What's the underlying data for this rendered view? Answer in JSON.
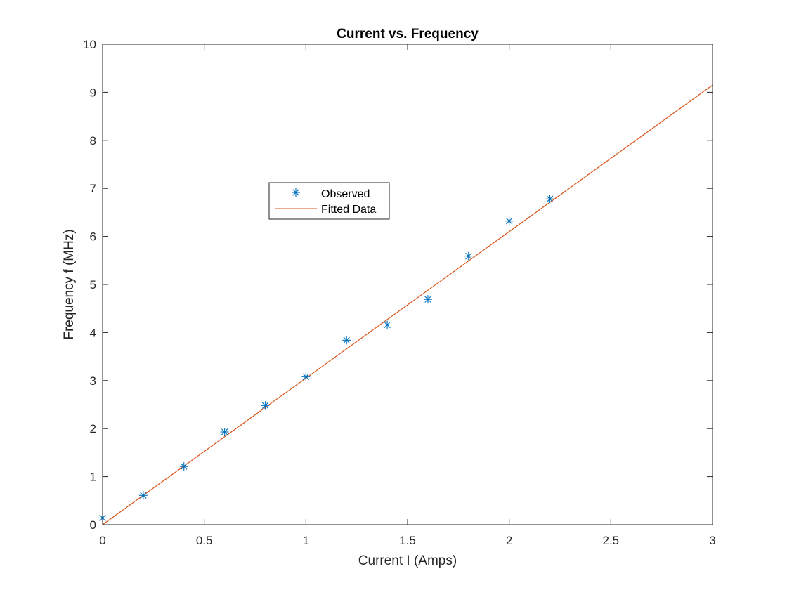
{
  "chart_data": {
    "type": "scatter",
    "title": "Current vs. Frequency",
    "xlabel": "Current I (Amps)",
    "ylabel": "Frequency f (MHz)",
    "xlim": [
      0,
      3
    ],
    "ylim": [
      0,
      10
    ],
    "xticks": [
      "0",
      "0.5",
      "1",
      "1.5",
      "2",
      "2.5",
      "3"
    ],
    "xtick_values": [
      0,
      0.5,
      1,
      1.5,
      2,
      2.5,
      3
    ],
    "yticks": [
      "0",
      "1",
      "2",
      "3",
      "4",
      "5",
      "6",
      "7",
      "8",
      "9",
      "10"
    ],
    "ytick_values": [
      0,
      1,
      2,
      3,
      4,
      5,
      6,
      7,
      8,
      9,
      10
    ],
    "grid": false,
    "legend_position": "upper-left inside",
    "series": [
      {
        "name": "Observed",
        "kind": "scatter",
        "marker": "asterisk",
        "color": "#0072BD",
        "x": [
          0,
          0.2,
          0.4,
          0.6,
          0.8,
          1.0,
          1.2,
          1.4,
          1.6,
          1.8,
          2.0,
          2.2
        ],
        "y": [
          0.14,
          0.61,
          1.21,
          1.93,
          2.48,
          3.08,
          3.84,
          4.16,
          4.69,
          5.59,
          6.32,
          6.78
        ]
      },
      {
        "name": "Fitted Data",
        "kind": "line",
        "color": "#D95319",
        "x": [
          0,
          3
        ],
        "y": [
          0,
          9.15
        ]
      }
    ]
  }
}
